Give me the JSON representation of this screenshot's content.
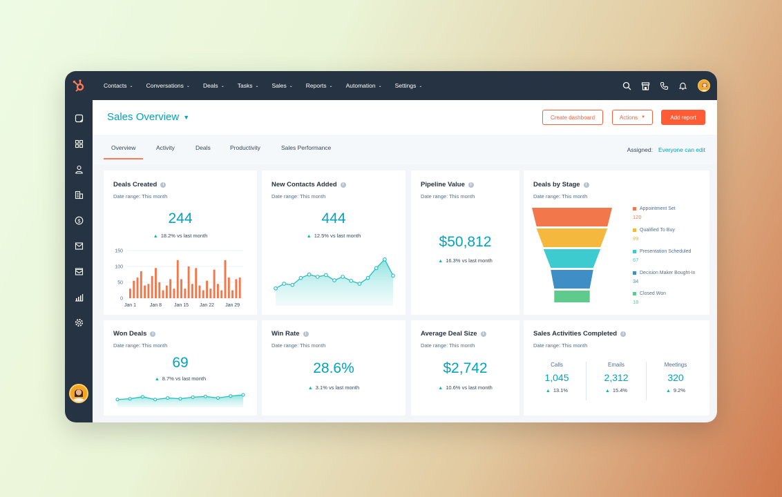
{
  "topnav": {
    "items": [
      "Contacts",
      "Conversations",
      "Deals",
      "Tasks",
      "Sales",
      "Reports",
      "Automation",
      "Settings"
    ]
  },
  "header": {
    "title": "Sales Overview",
    "create_dashboard": "Create dashboard",
    "actions": "Actions",
    "add_report": "Add report"
  },
  "tabs": {
    "items": [
      "Overview",
      "Activity",
      "Deals",
      "Productivity",
      "Sales Performance"
    ],
    "assigned_label": "Assigned:",
    "assigned_value": "Everyone can edit"
  },
  "colors": {
    "accent": "#00a4bd",
    "orange": "#ff5c35",
    "nav": "#253342",
    "bar": "#f2784b"
  },
  "cards": {
    "deals_created": {
      "title": "Deals Created",
      "range": "Date range: This month",
      "value": "244",
      "delta": "18.2%",
      "delta_text": "vs last month"
    },
    "new_contacts": {
      "title": "New Contacts Added",
      "range": "Date range: This month",
      "value": "444",
      "delta": "12.5%",
      "delta_text": "vs last month"
    },
    "pipeline_value": {
      "title": "Pipeline Value",
      "range": "Date range: This month",
      "value": "$50,812",
      "delta": "16.3%",
      "delta_text": "vs last month"
    },
    "deals_by_stage": {
      "title": "Deals by Stage",
      "range": "Date range: This month"
    },
    "won_deals": {
      "title": "Won Deals",
      "range": "Date range: This month",
      "value": "69",
      "delta": "8.7%",
      "delta_text": "vs last month"
    },
    "win_rate": {
      "title": "Win Rate",
      "range": "Date range: This month",
      "value": "28.6%",
      "delta": "3.1%",
      "delta_text": "vs last month"
    },
    "avg_deal_size": {
      "title": "Average Deal Size",
      "range": "Date range: This month",
      "value": "$2,742",
      "delta": "10.6%",
      "delta_text": "vs last month"
    },
    "sales_activities": {
      "title": "Sales Activities Completed",
      "range": "Date range: This month",
      "cols": [
        {
          "label": "Calls",
          "value": "1,045",
          "delta": "13.1%"
        },
        {
          "label": "Emails",
          "value": "2,312",
          "delta": "15.4%"
        },
        {
          "label": "Meetings",
          "value": "320",
          "delta": "9.2%"
        }
      ]
    }
  },
  "chart_data": [
    {
      "type": "bar",
      "categories": [
        "Jan 1",
        "Jan 2",
        "Jan 3",
        "Jan 4",
        "Jan 5",
        "Jan 6",
        "Jan 7",
        "Jan 8",
        "Jan 9",
        "Jan 10",
        "Jan 11",
        "Jan 12",
        "Jan 13",
        "Jan 14",
        "Jan 15",
        "Jan 16",
        "Jan 17",
        "Jan 18",
        "Jan 19",
        "Jan 20",
        "Jan 21",
        "Jan 22",
        "Jan 23",
        "Jan 24",
        "Jan 25",
        "Jan 26",
        "Jan 27",
        "Jan 28",
        "Jan 29",
        "Jan 30",
        "Jan 31"
      ],
      "values": [
        30,
        55,
        65,
        85,
        40,
        45,
        70,
        95,
        50,
        25,
        40,
        60,
        30,
        120,
        60,
        30,
        100,
        45,
        95,
        40,
        25,
        55,
        30,
        90,
        45,
        25,
        120,
        65,
        25,
        60,
        65
      ],
      "tick_labels": [
        "Jan 1",
        "Jan 8",
        "Jan 15",
        "Jan 22",
        "Jan 29"
      ],
      "yticks": [
        "0",
        "50",
        "100",
        "150"
      ],
      "ylim": [
        0,
        150
      ]
    },
    {
      "type": "area",
      "x": [
        1,
        2,
        3,
        4,
        5,
        6,
        7,
        8,
        9,
        10,
        11,
        12,
        13,
        14,
        15
      ],
      "values": [
        30,
        38,
        36,
        48,
        54,
        50,
        53,
        44,
        50,
        43,
        38,
        48,
        65,
        80,
        52
      ],
      "ylim": [
        0,
        100
      ]
    },
    {
      "type": "bar",
      "orientation": "funnel",
      "categories": [
        "Appointment Set",
        "Qualified To Buy",
        "Presentation Scheduled",
        "Decision Maker Bought-In",
        "Closed Won"
      ],
      "values": [
        120,
        99,
        67,
        34,
        18
      ],
      "colors": [
        "#f2784b",
        "#f5b83f",
        "#3ecbd0",
        "#3f8fc6",
        "#5ecb8c"
      ]
    },
    {
      "type": "area",
      "x": [
        1,
        2,
        3,
        4,
        5,
        6,
        7,
        8,
        9,
        10,
        11
      ],
      "values": [
        20,
        22,
        27,
        20,
        24,
        22,
        26,
        28,
        24,
        29,
        32
      ],
      "ylim": [
        0,
        50
      ]
    }
  ]
}
